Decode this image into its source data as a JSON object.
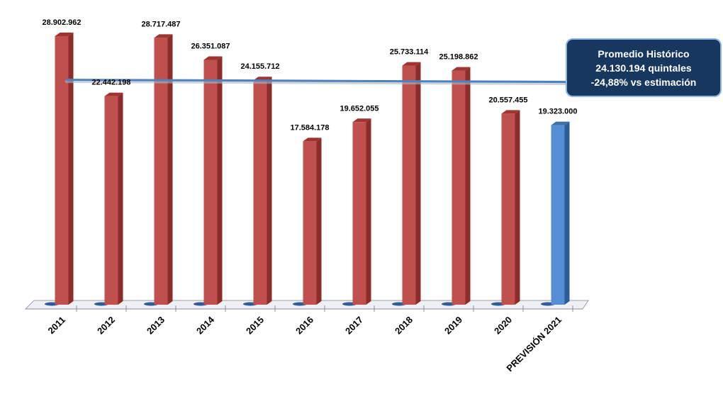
{
  "chart_data": {
    "type": "bar",
    "categories": [
      "2011",
      "2012",
      "2013",
      "2014",
      "2015",
      "2016",
      "2017",
      "2018",
      "2019",
      "2020",
      "PREVISIÓN 2021"
    ],
    "values": [
      28902962,
      22442198,
      28717487,
      26351087,
      24155712,
      17584178,
      19652055,
      25733114,
      25198862,
      20557455,
      19323000
    ],
    "value_labels": [
      "28.902.962",
      "22.442.198",
      "28.717.487",
      "26.351.087",
      "24.155.712",
      "17.584.178",
      "19.652.055",
      "25.733.114",
      "25.198.862",
      "20.557.455",
      "19.323.000"
    ],
    "highlight_index": 10,
    "ylim": [
      0,
      30000000
    ],
    "average_line": 24130194,
    "grid": false,
    "title": "",
    "xlabel": "",
    "ylabel": ""
  },
  "callout": {
    "line1": "Promedio Histórico",
    "line2": "24.130.194 quintales",
    "line3": "-24,88% vs estimación"
  },
  "colors": {
    "bar_front": "#c0504d",
    "bar_side": "#8b2d2b",
    "bar_top": "#9e3532",
    "highlight_front": "#558ed5",
    "highlight_side": "#2e5c96",
    "highlight_top": "#3e6fad",
    "average_line": "#4f81bd",
    "callout_bg": "#17375e",
    "callout_border": "#8eb4e3"
  }
}
